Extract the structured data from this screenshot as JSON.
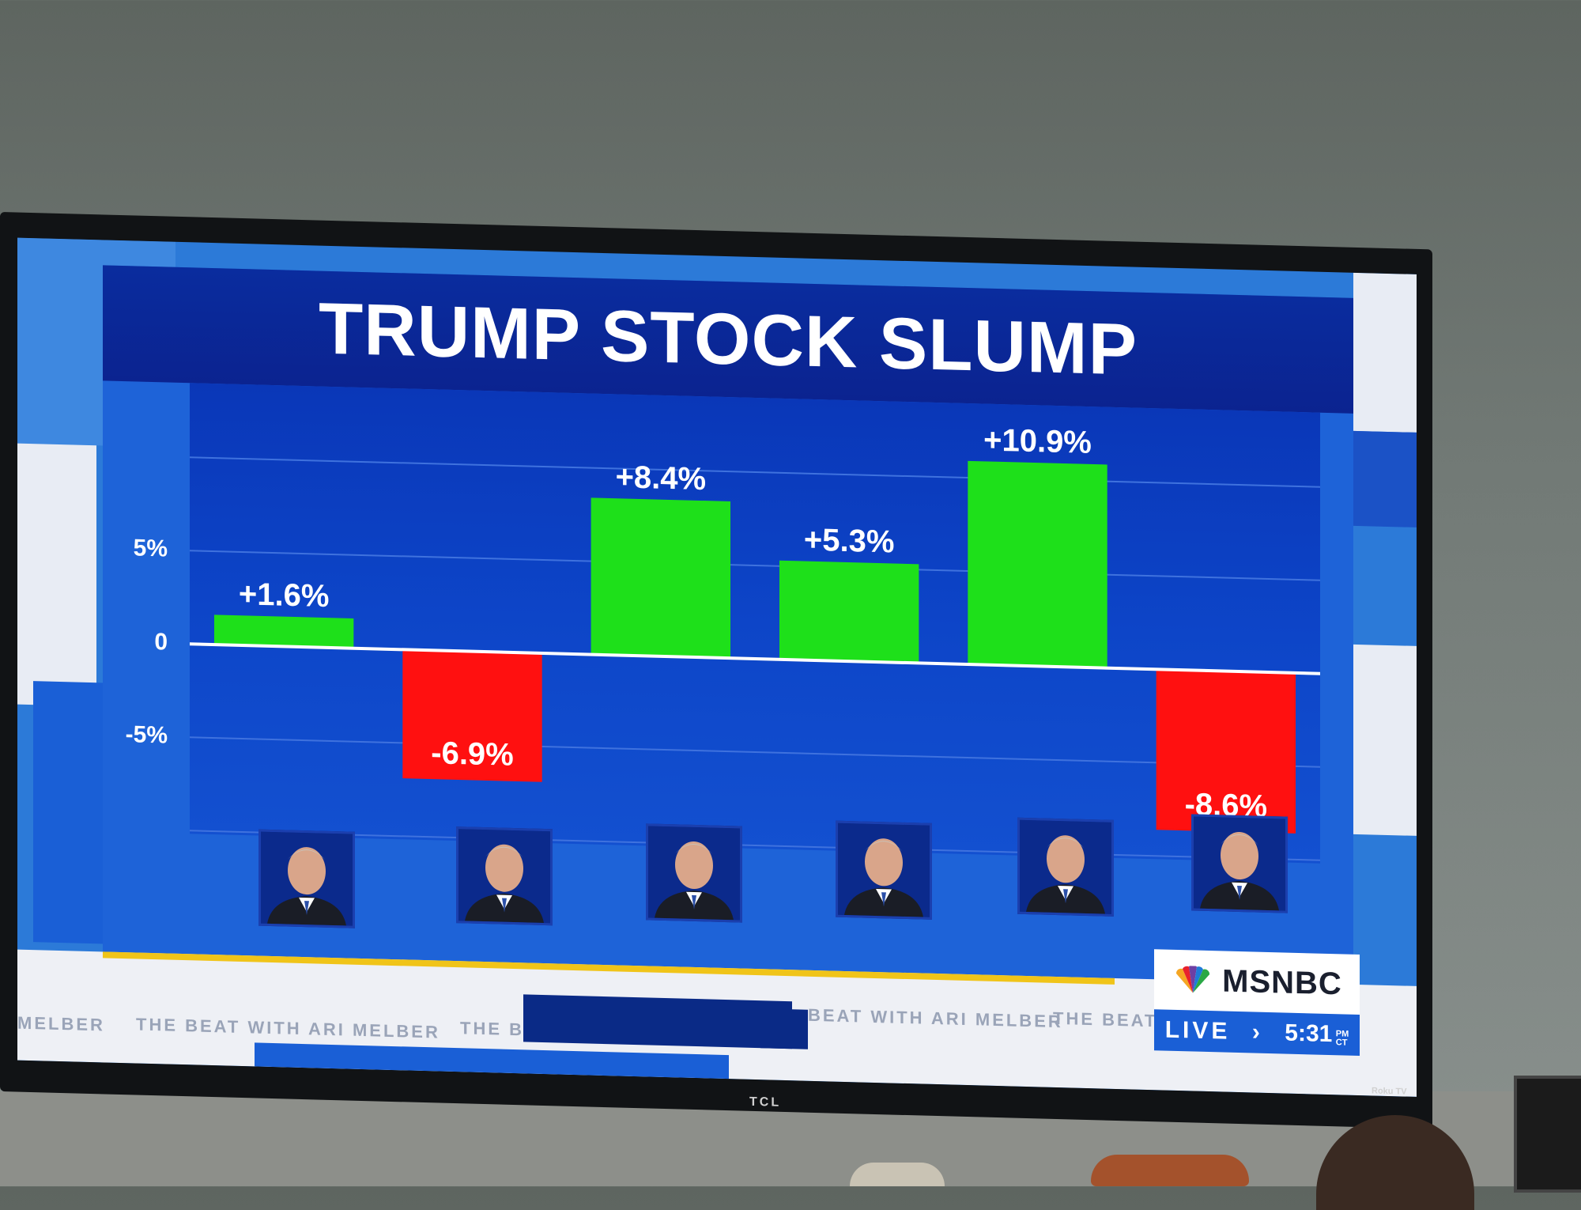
{
  "chart_data": {
    "type": "bar",
    "title": "TRUMP STOCK SLUMP",
    "categories": [
      "",
      "",
      "",
      "",
      "",
      ""
    ],
    "values": [
      1.6,
      -6.9,
      8.4,
      5.3,
      10.9,
      -8.6
    ],
    "value_labels": [
      "+1.6%",
      "-6.9%",
      "+8.4%",
      "+5.3%",
      "+10.9%",
      "-8.6%"
    ],
    "bar_colors": [
      "#1ee01a",
      "#ff1010",
      "#1ee01a",
      "#1ee01a",
      "#1ee01a",
      "#ff1010"
    ],
    "yticks": [
      {
        "value": 5,
        "label": "5%"
      },
      {
        "value": 0,
        "label": "0"
      },
      {
        "value": -5,
        "label": "-5%"
      }
    ],
    "ylim": [
      -10,
      13
    ],
    "grid": true,
    "xlabel": "",
    "ylabel": ""
  },
  "broadcast": {
    "show_name": "THE BEAT WITH ARI MELBER",
    "ticker_fragments": [
      "MELBER",
      "THE BEAT WITH ARI MELBER",
      "THE BE",
      "BEAT WITH ARI MELBER",
      "THE BEAT"
    ],
    "network": "MSNBC",
    "live_label": "LIVE",
    "arrow": "›",
    "time": "5:31",
    "time_suffix_top": "PM",
    "time_suffix_bottom": "CT"
  },
  "tv": {
    "brand": "TCL",
    "platform": "Roku TV"
  },
  "colors": {
    "positive": "#1ee01a",
    "negative": "#ff1010",
    "title_band": "#0b2390",
    "accent_yellow": "#f0c419"
  }
}
